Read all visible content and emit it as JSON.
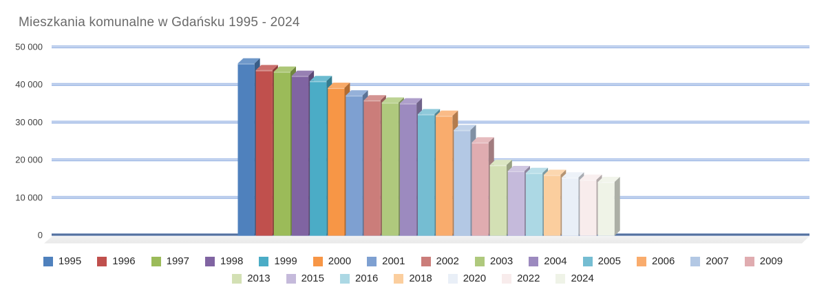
{
  "title": "Mieszkania komunalne w Gdańsku 1995 - 2024",
  "chart_data": {
    "type": "bar",
    "style": "3d-column",
    "title": "Mieszkania komunalne w Gdańsku 1995 - 2024",
    "categories": [
      "1995",
      "1996",
      "1997",
      "1998",
      "1999",
      "2000",
      "2001",
      "2002",
      "2003",
      "2004",
      "2005",
      "2006",
      "2007",
      "2009",
      "2013",
      "2015",
      "2016",
      "2018",
      "2020",
      "2022",
      "2024"
    ],
    "values": [
      45600,
      43800,
      43400,
      42300,
      40900,
      39100,
      37100,
      35800,
      35200,
      35000,
      32100,
      31700,
      27900,
      24600,
      18600,
      17000,
      16500,
      16000,
      15300,
      14700,
      14100
    ],
    "colors": [
      "#4F81BD",
      "#C0504D",
      "#9BBB59",
      "#8064A2",
      "#4BACC6",
      "#F79646",
      "#7EA0D1",
      "#CB7D7A",
      "#AFC97D",
      "#9C8ABF",
      "#75BDD2",
      "#F9AC6D",
      "#B3C8E4",
      "#E0ACB0",
      "#D3E0B4",
      "#C5BADB",
      "#ACD8E4",
      "#FBCE9E",
      "#E9EFF7",
      "#F8ECEC",
      "#EFF3E7"
    ],
    "xlabel": "",
    "ylabel": "",
    "ylim": [
      0,
      50000
    ],
    "y_tick_values": [
      0,
      10000,
      20000,
      30000,
      40000,
      50000
    ],
    "y_tick_labels": [
      "0",
      "10 000",
      "20 000",
      "30 000",
      "40 000",
      "50 000"
    ],
    "grid": true,
    "legend_position": "bottom",
    "legend_rows": [
      14,
      7
    ]
  },
  "colors": {
    "title_text": "#6A6A6A",
    "tick_text": "#3F3F3F",
    "legend_text": "#262626",
    "gridline_mid": "#9AB5E4",
    "gridline_light": "#DCE6F6",
    "zero_line": "#54719E",
    "floor": "#EFEFEF",
    "background": "#FFFFFF"
  }
}
